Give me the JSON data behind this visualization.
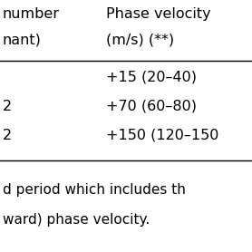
{
  "header_row1": [
    "number",
    "Phase velocity"
  ],
  "header_row2": [
    "nant)",
    "(m/s) (**)"
  ],
  "data_rows": [
    [
      "",
      "+15 (20–40)"
    ],
    [
      "2",
      "+70 (60–80)"
    ],
    [
      "2",
      "+150 (120–150"
    ]
  ],
  "footer_lines": [
    "d period which includes th",
    "ward) phase velocity."
  ],
  "bg_color": "#ffffff",
  "text_color": "#000000",
  "font_size": 11.5,
  "footer_font_size": 11.0
}
